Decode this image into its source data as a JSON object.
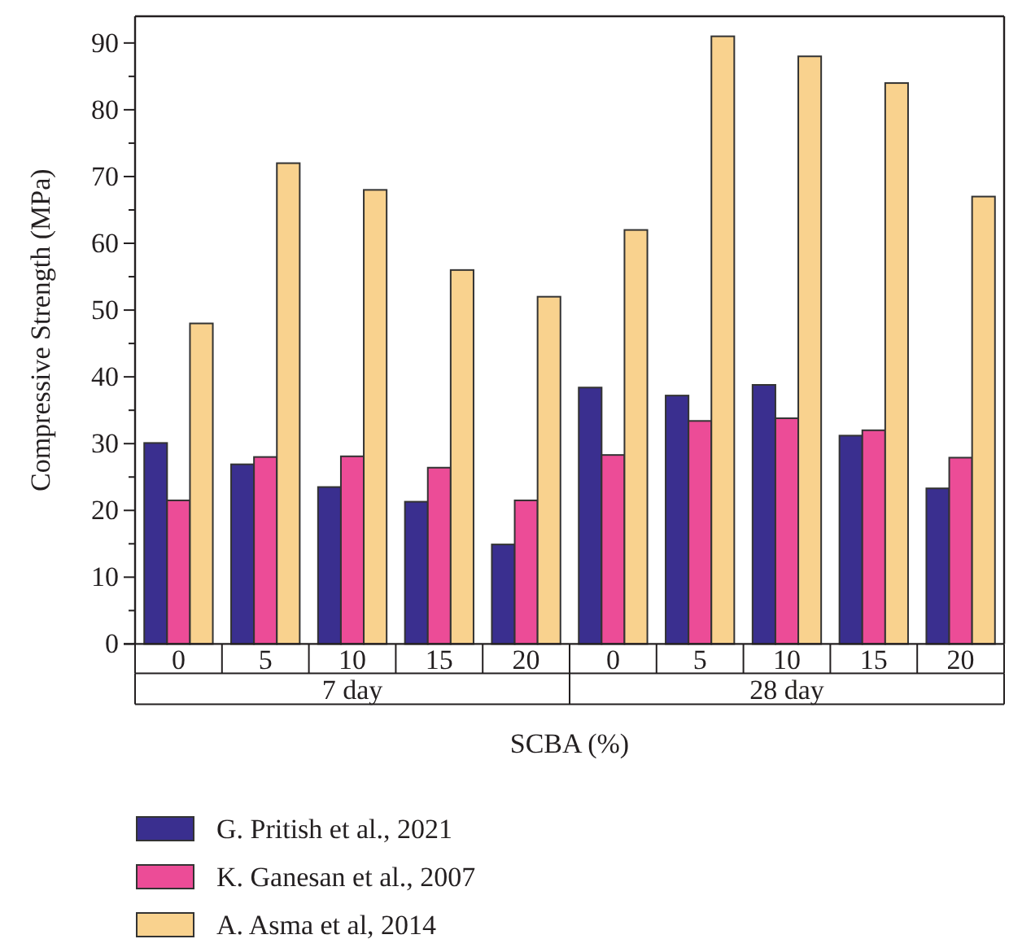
{
  "chart_data": {
    "type": "bar",
    "xlabel": "SCBA (%)",
    "ylabel": "Compressive Strength (MPa)",
    "categories": [
      "0",
      "5",
      "10",
      "15",
      "20",
      "0",
      "5",
      "10",
      "15",
      "20"
    ],
    "annotations": [
      "7 day",
      "28 day"
    ],
    "series": [
      {
        "name": "G. Pritish et al., 2021",
        "color": "#3a2f8f",
        "values": [
          30.1,
          26.9,
          23.5,
          21.3,
          14.9,
          38.4,
          37.2,
          38.8,
          31.2,
          23.3
        ]
      },
      {
        "name": "K. Ganesan et al., 2007",
        "color": "#ec4c97",
        "values": [
          21.5,
          28.0,
          28.1,
          26.4,
          21.5,
          28.3,
          33.4,
          33.8,
          32.0,
          27.9
        ]
      },
      {
        "name": "A. Asma et al, 2014",
        "color": "#f9d28e",
        "values": [
          48,
          72,
          68,
          56,
          52,
          62,
          91,
          88,
          84,
          67
        ]
      }
    ],
    "ylim": [
      0,
      94
    ],
    "yticks": [
      0,
      {
        "value": 5,
        "label": null
      },
      10,
      {
        "value": 15,
        "label": null
      },
      20,
      {
        "value": 25,
        "label": null
      },
      30,
      {
        "value": 35,
        "label": null
      },
      40,
      {
        "value": 45,
        "label": null
      },
      50,
      {
        "value": 55,
        "label": null
      },
      60,
      {
        "value": 65,
        "label": null
      },
      70,
      {
        "value": 75,
        "label": null
      },
      80,
      {
        "value": 85,
        "label": null
      },
      90
    ],
    "legend": "bottom"
  }
}
